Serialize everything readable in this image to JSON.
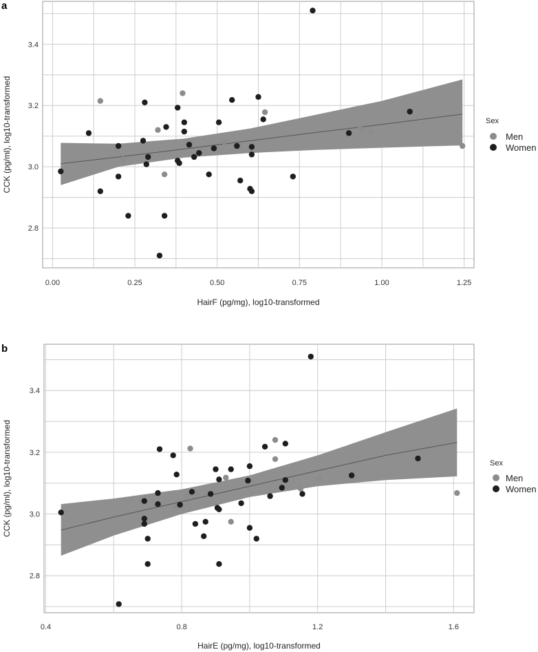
{
  "colors": {
    "men": "#8c8c8c",
    "women": "#1e1e1e",
    "ribbon": "#8f8f8f",
    "line": "#555555",
    "grid": "#cccccc"
  },
  "chart_data": [
    {
      "panel_label": "a",
      "type": "scatter",
      "xlabel": "HairF (pg/mg), log10-transformed",
      "ylabel": "CCK (pg/ml), log10-transformed",
      "xlim": [
        -0.03,
        1.28
      ],
      "ylim": [
        2.67,
        3.54
      ],
      "xticks": [
        0.0,
        0.25,
        0.5,
        0.75,
        1.0,
        1.25
      ],
      "xtick_labels": [
        "0.00",
        "0.25",
        "0.50",
        "0.75",
        "1.00",
        "1.25"
      ],
      "yticks": [
        2.8,
        3.0,
        3.2,
        3.4
      ],
      "ytick_labels": [
        "2.8",
        "3.0",
        "3.2",
        "3.4"
      ],
      "grid": true,
      "legend": {
        "title": "Sex",
        "entries": [
          "Men",
          "Women"
        ],
        "position": "right"
      },
      "fit": {
        "x": [
          0.025,
          0.2,
          0.4,
          0.6,
          0.8,
          1.0,
          1.245
        ],
        "y": [
          3.01,
          3.032,
          3.058,
          3.085,
          3.112,
          3.138,
          3.172
        ],
        "lower": [
          2.94,
          3.0,
          3.03,
          3.045,
          3.055,
          3.062,
          3.07
        ],
        "upper": [
          3.078,
          3.075,
          3.092,
          3.125,
          3.17,
          3.215,
          3.285
        ]
      },
      "series": [
        {
          "name": "Men",
          "points": [
            [
              0.145,
              3.215
            ],
            [
              0.2,
              3.06
            ],
            [
              0.215,
              3.025
            ],
            [
              0.32,
              3.12
            ],
            [
              0.34,
              2.975
            ],
            [
              0.395,
              3.24
            ],
            [
              0.52,
              3.082
            ],
            [
              0.645,
              3.178
            ],
            [
              0.935,
              3.125
            ],
            [
              0.965,
              3.115
            ],
            [
              1.245,
              3.068
            ]
          ]
        },
        {
          "name": "Women",
          "points": [
            [
              0.025,
              2.985
            ],
            [
              0.11,
              3.11
            ],
            [
              0.145,
              2.92
            ],
            [
              0.2,
              3.068
            ],
            [
              0.2,
              2.968
            ],
            [
              0.23,
              2.84
            ],
            [
              0.275,
              3.085
            ],
            [
              0.28,
              3.21
            ],
            [
              0.285,
              3.008
            ],
            [
              0.29,
              3.032
            ],
            [
              0.345,
              3.13
            ],
            [
              0.34,
              2.84
            ],
            [
              0.325,
              2.71
            ],
            [
              0.38,
              3.193
            ],
            [
              0.38,
              3.02
            ],
            [
              0.385,
              3.012
            ],
            [
              0.4,
              3.145
            ],
            [
              0.4,
              3.115
            ],
            [
              0.415,
              3.072
            ],
            [
              0.43,
              3.032
            ],
            [
              0.445,
              3.045
            ],
            [
              0.475,
              2.975
            ],
            [
              0.49,
              3.06
            ],
            [
              0.505,
              3.145
            ],
            [
              0.545,
              3.218
            ],
            [
              0.56,
              3.068
            ],
            [
              0.57,
              2.955
            ],
            [
              0.6,
              2.928
            ],
            [
              0.605,
              2.92
            ],
            [
              0.605,
              3.04
            ],
            [
              0.605,
              3.065
            ],
            [
              0.625,
              3.228
            ],
            [
              0.64,
              3.155
            ],
            [
              0.73,
              2.968
            ],
            [
              0.79,
              3.51
            ],
            [
              0.9,
              3.11
            ],
            [
              1.085,
              3.18
            ]
          ]
        }
      ]
    },
    {
      "panel_label": "b",
      "type": "scatter",
      "xlabel": "HairE (pg/mg), log10-transformed",
      "ylabel": "CCK (pg/ml), log10-transformed",
      "xlim": [
        0.395,
        1.66
      ],
      "ylim": [
        2.68,
        3.55
      ],
      "xticks": [
        0.4,
        0.8,
        1.2,
        1.6
      ],
      "xtick_labels": [
        "0.4",
        "0.8",
        "1.2",
        "1.6"
      ],
      "yticks": [
        2.8,
        3.0,
        3.2,
        3.4
      ],
      "ytick_labels": [
        "2.8",
        "3.0",
        "3.2",
        "3.4"
      ],
      "grid": true,
      "legend": {
        "title": "Sex",
        "entries": [
          "Men",
          "Women"
        ],
        "position": "right"
      },
      "fit": {
        "x": [
          0.445,
          0.6,
          0.8,
          1.0,
          1.2,
          1.4,
          1.61
        ],
        "y": [
          2.948,
          2.99,
          3.04,
          3.09,
          3.14,
          3.19,
          3.232
        ],
        "lower": [
          2.865,
          2.93,
          3.0,
          3.055,
          3.09,
          3.11,
          3.122
        ],
        "upper": [
          3.032,
          3.05,
          3.08,
          3.125,
          3.19,
          3.265,
          3.342
        ]
      },
      "series": [
        {
          "name": "Men",
          "points": [
            [
              0.825,
              3.212
            ],
            [
              0.815,
              3.058
            ],
            [
              0.785,
              3.022
            ],
            [
              0.845,
              3.068
            ],
            [
              0.93,
              3.118
            ],
            [
              0.945,
              2.975
            ],
            [
              1.075,
              3.24
            ],
            [
              1.075,
              3.178
            ],
            [
              1.205,
              3.115
            ],
            [
              1.15,
              3.082
            ],
            [
              1.61,
              3.068
            ]
          ]
        },
        {
          "name": "Women",
          "points": [
            [
              0.445,
              3.005
            ],
            [
              0.615,
              2.708
            ],
            [
              0.69,
              2.985
            ],
            [
              0.69,
              2.968
            ],
            [
              0.69,
              3.042
            ],
            [
              0.7,
              2.838
            ],
            [
              0.7,
              2.92
            ],
            [
              0.73,
              3.068
            ],
            [
              0.73,
              3.032
            ],
            [
              0.735,
              3.21
            ],
            [
              0.775,
              3.19
            ],
            [
              0.785,
              3.128
            ],
            [
              0.795,
              3.03
            ],
            [
              0.83,
              3.072
            ],
            [
              0.84,
              2.968
            ],
            [
              0.865,
              2.928
            ],
            [
              0.87,
              2.975
            ],
            [
              0.885,
              3.065
            ],
            [
              0.9,
              3.145
            ],
            [
              0.905,
              3.02
            ],
            [
              0.91,
              3.112
            ],
            [
              0.91,
              3.015
            ],
            [
              0.91,
              2.838
            ],
            [
              0.945,
              3.145
            ],
            [
              0.975,
              3.035
            ],
            [
              0.995,
              3.108
            ],
            [
              1.0,
              3.155
            ],
            [
              1.0,
              2.955
            ],
            [
              1.02,
              2.92
            ],
            [
              1.045,
              3.218
            ],
            [
              1.06,
              3.058
            ],
            [
              1.095,
              3.085
            ],
            [
              1.105,
              3.228
            ],
            [
              1.105,
              3.11
            ],
            [
              1.155,
              3.065
            ],
            [
              1.18,
              3.51
            ],
            [
              1.3,
              3.125
            ],
            [
              1.495,
              3.18
            ]
          ]
        }
      ]
    }
  ]
}
